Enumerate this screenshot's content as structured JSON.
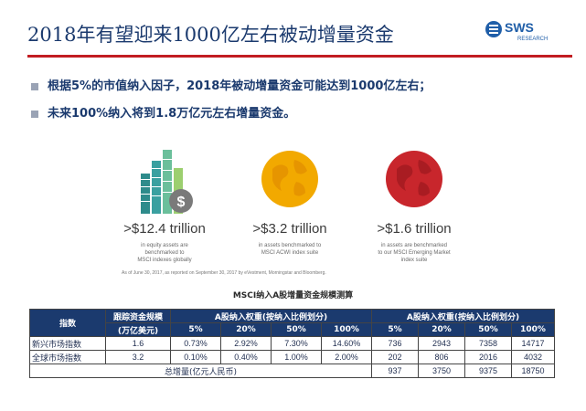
{
  "header": {
    "title": "2018年有望迎来1000亿左右被动增量资金",
    "logo_text": "SWS",
    "logo_sub": "RESEARCH"
  },
  "bullets": [
    {
      "text": "根据5%的市值纳入因子，2018年被动增量资金可能达到1000亿左右；"
    },
    {
      "text": "未来100%纳入将到1.8万亿元左右增量资金。"
    }
  ],
  "stats": [
    {
      "big": ">$12.4 trillion",
      "l1": "in equity assets are",
      "l2": "benchmarked to",
      "l3": "MSCI indexes globally"
    },
    {
      "big": ">$3.2 trillion",
      "l1": "in assets benchmarked to",
      "l2": "MSCI ACWI index suite",
      "l3": ""
    },
    {
      "big": ">$1.6 trillion",
      "l1": "in assets are benchmarked",
      "l2": "to our MSCI Emerging Market",
      "l3": "index suite"
    }
  ],
  "as_of": "As of June 30, 2017, as reported on September 30, 2017 by eVestment, Morningstar and Bloomberg.",
  "table": {
    "title": "MSCI纳入A股增量资金规模测算",
    "h_index": "指数",
    "h_scale": "跟踪资金规模",
    "h_scale_unit": "(万亿美元)",
    "h_weight": "A股纳入权重(按纳入比例划分)",
    "h_amount": "A股纳入权重(按纳入比例划分)",
    "pcts": [
      "5%",
      "20%",
      "50%",
      "100%"
    ],
    "rows": [
      {
        "name": "新兴市场指数",
        "scale": "1.6",
        "w": [
          "0.73%",
          "2.92%",
          "7.30%",
          "14.60%"
        ],
        "a": [
          "736",
          "2943",
          "7358",
          "14717"
        ]
      },
      {
        "name": "全球市场指数",
        "scale": "3.2",
        "w": [
          "0.10%",
          "0.40%",
          "1.00%",
          "2.00%"
        ],
        "a": [
          "202",
          "806",
          "2016",
          "4032"
        ]
      }
    ],
    "total_label": "总增量(亿元人民币)",
    "totals": [
      "937",
      "3750",
      "9375",
      "18750"
    ]
  },
  "colors": {
    "navy": "#1b3a6e",
    "red": "#c21c22",
    "gold": "#f2a900",
    "darkred": "#c8262c"
  }
}
